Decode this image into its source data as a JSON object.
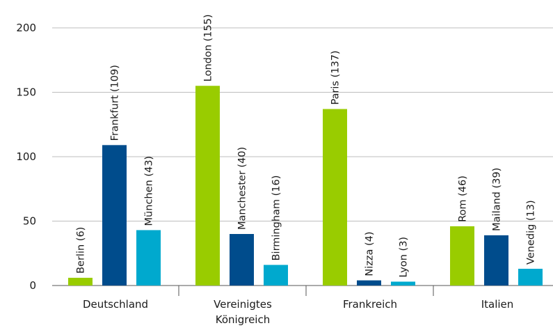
{
  "chart_data": {
    "type": "bar",
    "title": "",
    "xlabel": "",
    "ylabel": "",
    "ylim": [
      0,
      200
    ],
    "y_ticks": [
      0,
      50,
      100,
      150,
      200
    ],
    "grid": "horizontal",
    "colors": [
      "#99cc00",
      "#004c8c",
      "#00a9ce"
    ],
    "groups": [
      {
        "label": [
          "Deutschland"
        ],
        "bars": [
          {
            "label": "Berlin (6)",
            "value": 6
          },
          {
            "label": "Frankfurt (109)",
            "value": 109
          },
          {
            "label": "München (43)",
            "value": 43
          }
        ]
      },
      {
        "label": [
          "Vereinigtes",
          "Königreich"
        ],
        "bars": [
          {
            "label": "London (155)",
            "value": 155
          },
          {
            "label": "Manchester (40)",
            "value": 40
          },
          {
            "label": "Birmingham (16)",
            "value": 16
          }
        ]
      },
      {
        "label": [
          "Frankreich"
        ],
        "bars": [
          {
            "label": "Paris (137)",
            "value": 137
          },
          {
            "label": "Nizza (4)",
            "value": 4
          },
          {
            "label": "Lyon (3)",
            "value": 3
          }
        ]
      },
      {
        "label": [
          "Italien"
        ],
        "bars": [
          {
            "label": "Rom (46)",
            "value": 46
          },
          {
            "label": "Mailand (39)",
            "value": 39
          },
          {
            "label": "Venedig (13)",
            "value": 13
          }
        ]
      }
    ]
  }
}
